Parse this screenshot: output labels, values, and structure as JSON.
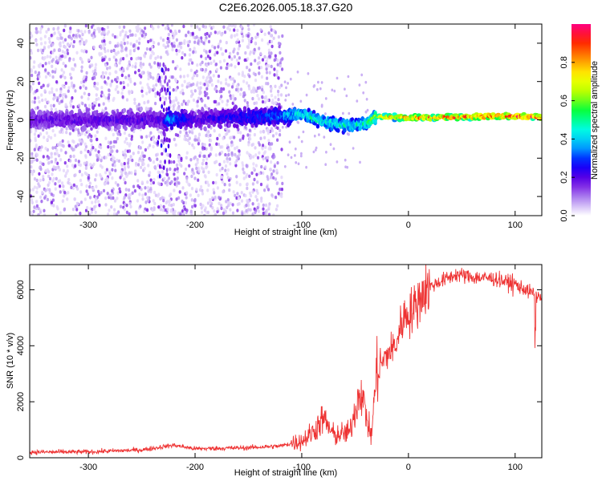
{
  "title": "C2E6.2026.005.18.37.G20",
  "chart_data": [
    {
      "type": "heatmap",
      "xlabel": "Height of straight line (km)",
      "ylabel": "Frequency (Hz)",
      "xlim": [
        -355,
        125
      ],
      "ylim": [
        -50,
        50
      ],
      "xticks": [
        -300,
        -200,
        -100,
        0,
        100
      ],
      "yticks": [
        -40,
        -20,
        0,
        20,
        40
      ],
      "colorbar": {
        "label": "Normalized spectral amplitude",
        "range": [
          0,
          1
        ],
        "ticks": [
          0.0,
          0.2,
          0.4,
          0.6,
          0.8
        ],
        "colors": [
          "#ffffff",
          "#b088f0",
          "#6a00e0",
          "#0000ff",
          "#00b0ff",
          "#00ffe0",
          "#00ff40",
          "#b0ff00",
          "#ffff00",
          "#ff9000",
          "#ff2000",
          "#ff0080"
        ]
      },
      "signal_band": {
        "center_hz": [
          [
            -355,
            0
          ],
          [
            -230,
            0
          ],
          [
            -120,
            2
          ],
          [
            -100,
            3
          ],
          [
            -80,
            -1
          ],
          [
            -60,
            -3
          ],
          [
            -40,
            -2
          ],
          [
            -30,
            2
          ],
          [
            -15,
            1.5
          ],
          [
            0,
            1
          ],
          [
            50,
            1.5
          ],
          [
            90,
            2
          ],
          [
            125,
            1.5
          ]
        ],
        "peak_amplitude": [
          [
            -355,
            0.2
          ],
          [
            -230,
            0.22
          ],
          [
            -225,
            0.4
          ],
          [
            -200,
            0.22
          ],
          [
            -120,
            0.35
          ],
          [
            -100,
            0.5
          ],
          [
            -70,
            0.5
          ],
          [
            -40,
            0.5
          ],
          [
            -20,
            0.8
          ],
          [
            0,
            0.85
          ],
          [
            50,
            0.95
          ],
          [
            125,
            0.95
          ]
        ]
      }
    },
    {
      "type": "line",
      "xlabel": "Height of straight line (km)",
      "ylabel": "SNR (10 * v/v)",
      "xlim": [
        -355,
        125
      ],
      "ylim": [
        0,
        6900
      ],
      "xticks": [
        -300,
        -200,
        -100,
        0,
        100
      ],
      "yticks": [
        0,
        2000,
        4000,
        6000
      ],
      "series": [
        {
          "name": "SNR",
          "color": "#ee3333",
          "points": [
            [
              -355,
              200
            ],
            [
              -300,
              210
            ],
            [
              -250,
              280
            ],
            [
              -220,
              450
            ],
            [
              -200,
              320
            ],
            [
              -150,
              360
            ],
            [
              -120,
              420
            ],
            [
              -100,
              600
            ],
            [
              -90,
              900
            ],
            [
              -80,
              1400
            ],
            [
              -70,
              800
            ],
            [
              -55,
              900
            ],
            [
              -45,
              2500
            ],
            [
              -35,
              700
            ],
            [
              -30,
              3000
            ],
            [
              -20,
              3700
            ],
            [
              -12,
              4000
            ],
            [
              -5,
              5000
            ],
            [
              5,
              5300
            ],
            [
              15,
              6000
            ],
            [
              30,
              6300
            ],
            [
              45,
              6550
            ],
            [
              60,
              6450
            ],
            [
              80,
              6400
            ],
            [
              100,
              6200
            ],
            [
              115,
              5900
            ],
            [
              125,
              5700
            ]
          ]
        }
      ]
    }
  ]
}
